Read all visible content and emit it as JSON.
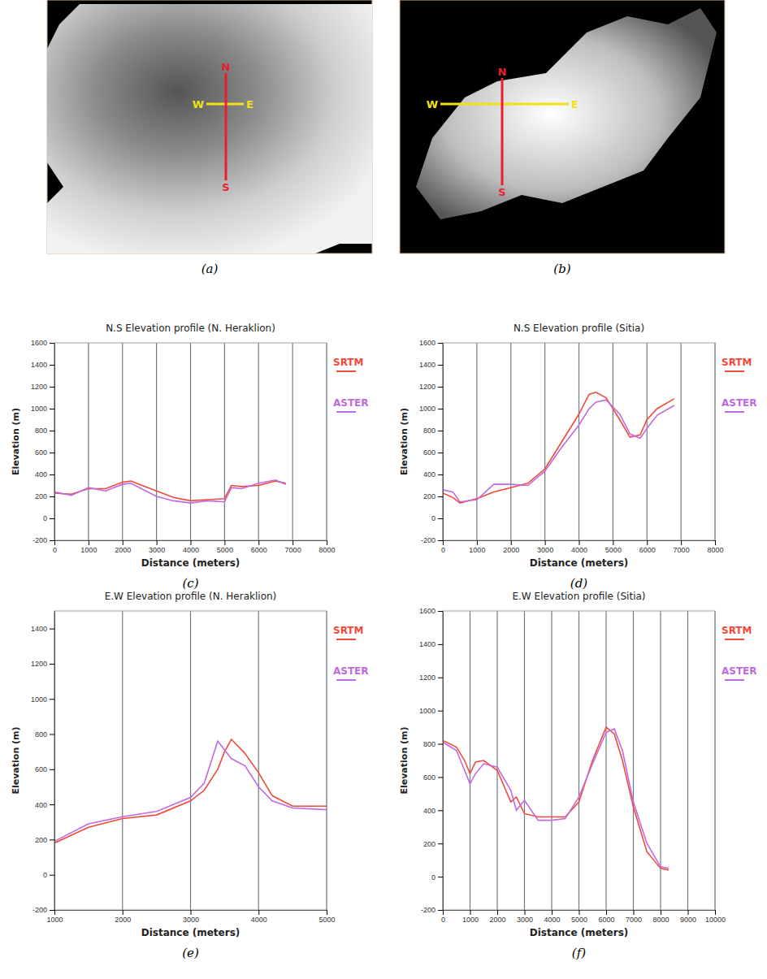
{
  "images": [
    {
      "panel": "(a)",
      "compass": [
        "N",
        "S",
        "W",
        "E"
      ]
    },
    {
      "panel": "(b)",
      "compass": [
        "N",
        "S",
        "W",
        "E"
      ]
    }
  ],
  "chart_data": [
    {
      "type": "line",
      "panel": "(c)",
      "title": "N.S Elevation profile (N. Heraklion)",
      "x_label": "Distance (meters)",
      "y_label": "Elevation (m)",
      "x": [
        0,
        500,
        1000,
        1500,
        2000,
        2250,
        2500,
        3000,
        3500,
        4000,
        4500,
        5000,
        5200,
        5500,
        6000,
        6500,
        6800
      ],
      "series": [
        {
          "name": "SRTM",
          "color": "#f04a3a",
          "values": [
            230,
            220,
            270,
            270,
            330,
            340,
            310,
            250,
            190,
            160,
            170,
            180,
            300,
            290,
            300,
            340,
            320
          ]
        },
        {
          "name": "ASTER",
          "color": "#c06ae0",
          "values": [
            240,
            210,
            280,
            250,
            310,
            320,
            280,
            200,
            160,
            140,
            160,
            150,
            280,
            270,
            320,
            350,
            310
          ]
        }
      ],
      "xlim": [
        0,
        8000
      ],
      "xticks": [
        0,
        1000,
        2000,
        3000,
        4000,
        5000,
        6000,
        7000,
        8000
      ],
      "ylim": [
        -200,
        1600
      ],
      "yticks": [
        -200,
        0,
        200,
        400,
        600,
        800,
        1000,
        1200,
        1400,
        1600
      ],
      "grid": true,
      "legend": "right"
    },
    {
      "type": "line",
      "panel": "(d)",
      "title": "N.S Elevation profile (Sitia)",
      "x_label": "Distance (meters)",
      "y_label": "Elevation (m)",
      "x": [
        0,
        300,
        500,
        1000,
        1500,
        2000,
        2500,
        3000,
        3500,
        4000,
        4300,
        4500,
        4800,
        5200,
        5500,
        5800,
        6000,
        6300,
        6800
      ],
      "series": [
        {
          "name": "SRTM",
          "color": "#f04a3a",
          "values": [
            230,
            190,
            140,
            180,
            240,
            280,
            320,
            450,
            700,
            950,
            1130,
            1150,
            1100,
            900,
            740,
            760,
            900,
            1000,
            1090
          ]
        },
        {
          "name": "ASTER",
          "color": "#c06ae0",
          "values": [
            260,
            240,
            150,
            170,
            310,
            310,
            300,
            430,
            650,
            850,
            1000,
            1060,
            1080,
            950,
            770,
            730,
            820,
            940,
            1030
          ]
        }
      ],
      "xlim": [
        0,
        8000
      ],
      "xticks": [
        0,
        1000,
        2000,
        3000,
        4000,
        5000,
        6000,
        7000,
        8000
      ],
      "ylim": [
        -200,
        1600
      ],
      "yticks": [
        -200,
        0,
        200,
        400,
        600,
        800,
        1000,
        1200,
        1400,
        1600
      ],
      "grid": true,
      "legend": "right"
    },
    {
      "type": "line",
      "panel": "(e)",
      "title": "E.W Elevation profile (N. Heraklion)",
      "x_label": "Distance (meters)",
      "y_label": "Elevation (m)",
      "x": [
        1000,
        1500,
        2000,
        2500,
        3000,
        3200,
        3400,
        3500,
        3600,
        3800,
        4000,
        4200,
        4500,
        5000
      ],
      "series": [
        {
          "name": "SRTM",
          "color": "#f04a3a",
          "values": [
            180,
            270,
            320,
            340,
            420,
            480,
            600,
            700,
            770,
            690,
            580,
            450,
            390,
            390
          ]
        },
        {
          "name": "ASTER",
          "color": "#c06ae0",
          "values": [
            190,
            290,
            330,
            360,
            440,
            520,
            760,
            710,
            660,
            620,
            500,
            420,
            380,
            370
          ]
        }
      ],
      "xlim": [
        1000,
        5000
      ],
      "xticks": [
        1000,
        2000,
        3000,
        4000,
        5000
      ],
      "ylim": [
        -200,
        1500
      ],
      "yticks": [
        -200,
        0,
        200,
        400,
        600,
        800,
        1000,
        1200,
        1400
      ],
      "grid": true,
      "legend": "right"
    },
    {
      "type": "line",
      "panel": "(f)",
      "title": "E.W Elevation profile (Sitia)",
      "x_label": "Distance (meters)",
      "y_label": "Elevation (m)",
      "x": [
        0,
        500,
        800,
        1000,
        1200,
        1500,
        2000,
        2500,
        2700,
        3000,
        3500,
        4000,
        4500,
        5000,
        5500,
        6000,
        6300,
        6600,
        7000,
        7500,
        8000,
        8300
      ],
      "series": [
        {
          "name": "SRTM",
          "color": "#f04a3a",
          "values": [
            820,
            780,
            700,
            620,
            690,
            700,
            640,
            450,
            480,
            380,
            360,
            360,
            360,
            450,
            700,
            900,
            860,
            700,
            420,
            150,
            50,
            40
          ]
        },
        {
          "name": "ASTER",
          "color": "#c06ae0",
          "values": [
            810,
            760,
            640,
            560,
            620,
            680,
            660,
            520,
            400,
            460,
            340,
            340,
            350,
            480,
            680,
            870,
            890,
            760,
            450,
            200,
            60,
            50
          ]
        }
      ],
      "xlim": [
        0,
        10000
      ],
      "xticks": [
        0,
        1000,
        2000,
        3000,
        4000,
        5000,
        6000,
        7000,
        8000,
        9000,
        10000
      ],
      "ylim": [
        -200,
        1600
      ],
      "yticks": [
        -200,
        0,
        200,
        400,
        600,
        800,
        1000,
        1200,
        1400,
        1600
      ],
      "grid": true,
      "legend": "right"
    }
  ]
}
